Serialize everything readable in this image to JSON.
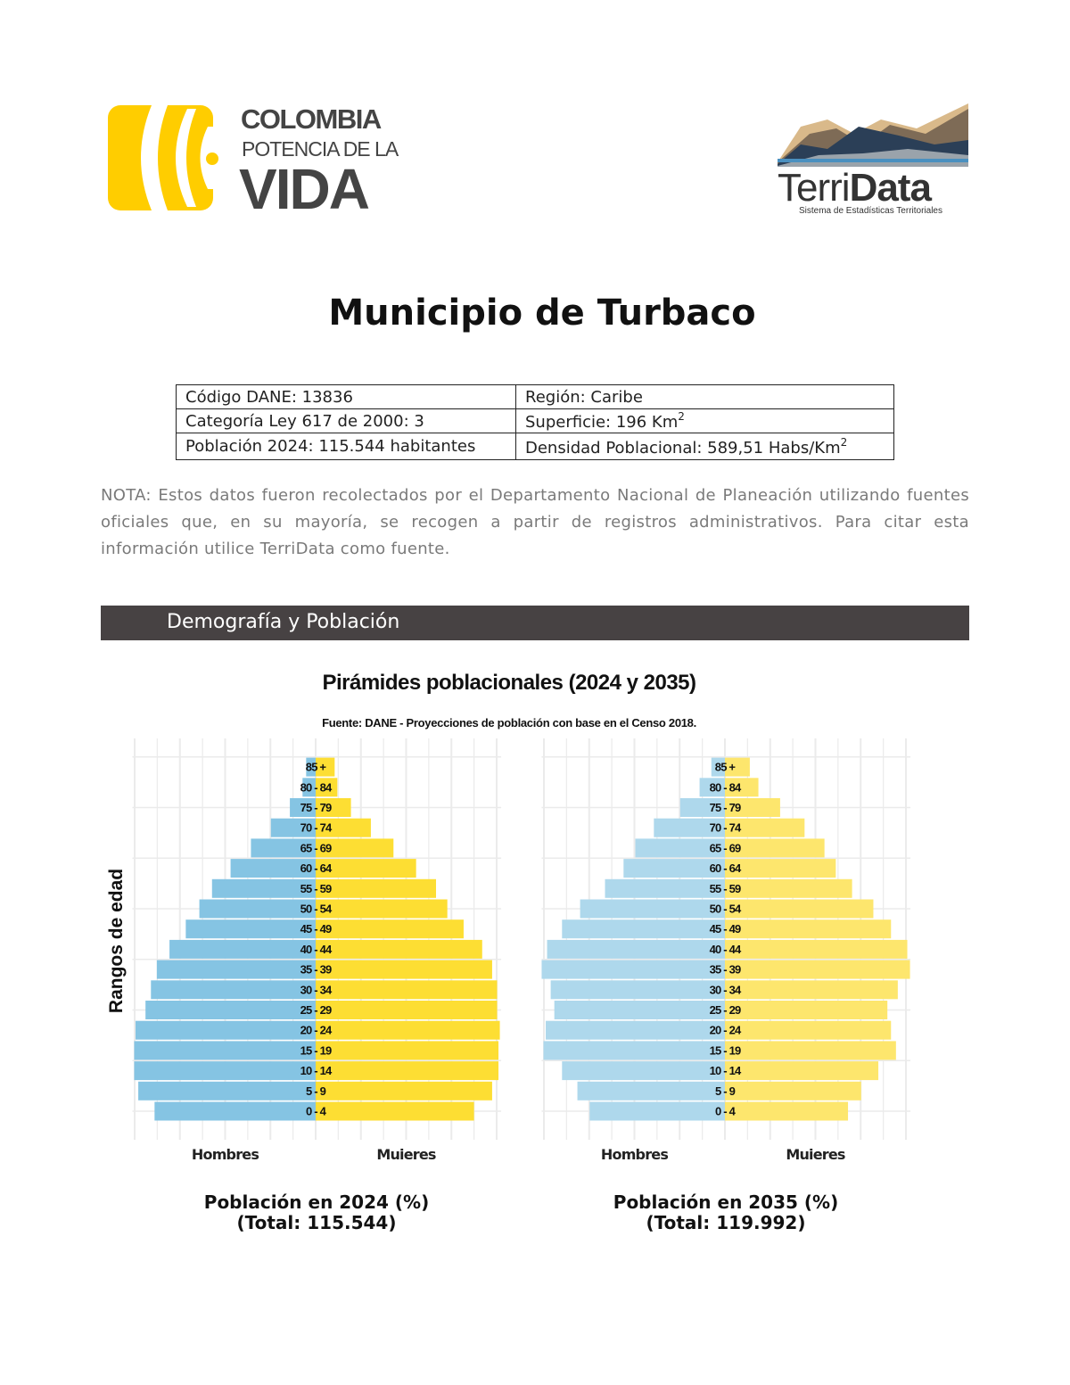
{
  "header": {
    "left_logo": {
      "line1": "COLOMBIA",
      "line2": "POTENCIA DE LA",
      "line3": "VIDA",
      "color": "#FFCD00"
    },
    "right_logo": {
      "name_light": "Terri",
      "name_bold": "Data",
      "tagline": "Sistema de Estadísticas Territoriales"
    }
  },
  "title": "Municipio de Turbaco",
  "info_table": [
    [
      "Código DANE: 13836",
      "Región: Caribe"
    ],
    [
      "Categoría Ley 617 de 2000: 3",
      "Superficie: 196 Km"
    ],
    [
      "Población 2024: 115.544 habitantes",
      "Densidad Poblacional: 589,51 Habs/Km"
    ]
  ],
  "superscript": "2",
  "note": "NOTA: Estos datos fueron recolectados por el Departamento Nacional de Planeación utilizando fuentes oficiales que, en su mayoría, se recogen a partir de registros administrativos. Para citar esta información utilice TerriData como fuente.",
  "section_title": "Demografía y Población",
  "chart_title": "Pirámides poblacionales (2024 y 2035)",
  "chart_subtitle": "Fuente: DANE - Proyecciones de población con base en el Censo 2018.",
  "ylabel": "Rangos de edad",
  "colors": {
    "hombres_2024": "#85C4E3",
    "mujeres_2024": "#FDDE33",
    "hombres_2035": "#AED8EC",
    "mujeres_2035": "#FDE66D",
    "section_bar": "#474243"
  },
  "chart_data": [
    {
      "type": "bar",
      "orientation": "horizontal-pyramid",
      "categories": [
        "0 - 4",
        "5 - 9",
        "10 - 14",
        "15 - 19",
        "20 - 24",
        "25 - 29",
        "30 - 34",
        "35 - 39",
        "40 - 44",
        "45 - 49",
        "50 - 54",
        "55 - 59",
        "60 - 64",
        "65 - 69",
        "70 - 74",
        "75 - 79",
        "80 - 84",
        "85 +"
      ],
      "series": [
        {
          "name": "Hombres",
          "values": [
            3.56,
            3.92,
            4.01,
            4.01,
            3.98,
            3.76,
            3.64,
            3.51,
            3.23,
            2.87,
            2.57,
            2.29,
            1.88,
            1.43,
            0.99,
            0.57,
            0.29,
            0.21
          ]
        },
        {
          "name": "Mujeres",
          "values": [
            3.5,
            3.9,
            4.04,
            4.04,
            4.07,
            4.01,
            4.01,
            3.9,
            3.68,
            3.27,
            2.91,
            2.66,
            2.22,
            1.72,
            1.22,
            0.78,
            0.48,
            0.42
          ]
        }
      ],
      "xlabel": "Población en 2024 (%)",
      "xlabel2": "(Total: 115.544)",
      "xticks_left": [
        "4",
        "3",
        "2",
        "1"
      ],
      "xticks_right": [
        "0",
        "1",
        "2",
        "3",
        "4"
      ],
      "xlim": [
        -4.05,
        4.1
      ],
      "grid": true
    },
    {
      "type": "bar",
      "orientation": "horizontal-pyramid",
      "categories": [
        "0 - 4",
        "5 - 9",
        "10 - 14",
        "15 - 19",
        "20 - 24",
        "25 - 29",
        "30 - 34",
        "35 - 39",
        "40 - 44",
        "45 - 49",
        "50 - 54",
        "55 - 59",
        "60 - 64",
        "65 - 69",
        "70 - 74",
        "75 - 79",
        "80 - 84",
        "85 +"
      ],
      "series": [
        {
          "name": "Hombres",
          "values": [
            2.99,
            3.26,
            3.6,
            4.01,
            3.96,
            3.77,
            3.85,
            4.05,
            3.93,
            3.6,
            3.2,
            2.65,
            2.24,
            1.98,
            1.57,
            0.99,
            0.56,
            0.3
          ]
        },
        {
          "name": "Mujeres",
          "values": [
            2.72,
            3.01,
            3.39,
            3.78,
            3.67,
            3.59,
            3.82,
            4.09,
            4.03,
            3.67,
            3.28,
            2.81,
            2.45,
            2.2,
            1.76,
            1.22,
            0.74,
            0.55
          ]
        }
      ],
      "xlabel": "Población en 2035 (%)",
      "xlabel2": "(Total: 119.992)",
      "xticks_left": [
        "3",
        "2",
        "1"
      ],
      "xticks_right": [
        "0",
        "1",
        "2",
        "3",
        "4"
      ],
      "xlim": [
        -4.05,
        4.1
      ],
      "grid": true
    }
  ]
}
